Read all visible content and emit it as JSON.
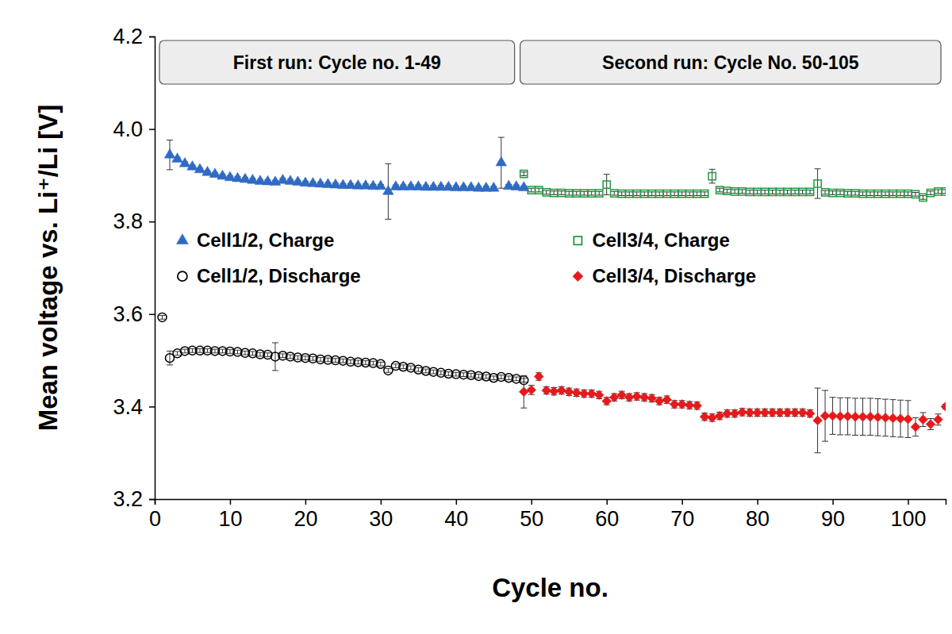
{
  "chart_data": {
    "type": "scatter",
    "x_label": "Cycle no.",
    "y_label": "Mean voltage vs. Li⁺/Li [V]",
    "annotations": [
      "First run: Cycle no. 1-49",
      "Second run: Cycle No. 50-105"
    ],
    "xlim": [
      0,
      105
    ],
    "xticks": [
      0,
      10,
      20,
      30,
      40,
      50,
      60,
      70,
      80,
      90,
      100
    ],
    "ylim": [
      3.2,
      4.2
    ],
    "yticks": [
      3.2,
      3.4,
      3.6,
      3.8,
      {
        "value": 4.0,
        "label": "4.0"
      },
      4.2
    ],
    "grid": false,
    "legend": "center",
    "series": [
      {
        "name": "Cell1/2, Charge",
        "color": "#2f6bc4",
        "marker": "triangle",
        "x": [
          2,
          3,
          4,
          5,
          6,
          7,
          8,
          9,
          10,
          11,
          12,
          13,
          14,
          15,
          16,
          17,
          18,
          19,
          20,
          21,
          22,
          23,
          24,
          25,
          26,
          27,
          28,
          29,
          30,
          31,
          32,
          33,
          34,
          35,
          36,
          37,
          38,
          39,
          40,
          41,
          42,
          43,
          44,
          45,
          46,
          47,
          48,
          49
        ],
        "values": [
          3.944,
          3.935,
          3.925,
          3.918,
          3.912,
          3.906,
          3.902,
          3.898,
          3.895,
          3.893,
          3.891,
          3.889,
          3.887,
          3.886,
          3.885,
          3.889,
          3.887,
          3.885,
          3.883,
          3.882,
          3.881,
          3.88,
          3.879,
          3.878,
          3.878,
          3.877,
          3.877,
          3.876,
          3.876,
          3.865,
          3.875,
          3.875,
          3.875,
          3.875,
          3.874,
          3.874,
          3.874,
          3.874,
          3.873,
          3.873,
          3.873,
          3.872,
          3.872,
          3.872,
          3.927,
          3.876,
          3.875,
          3.873
        ],
        "errors": [
          0.032,
          0.004,
          0.004,
          0.004,
          0.004,
          0.004,
          0.004,
          0.004,
          0.004,
          0.004,
          0.004,
          0.004,
          0.004,
          0.004,
          0.004,
          0.004,
          0.004,
          0.004,
          0.004,
          0.004,
          0.004,
          0.004,
          0.004,
          0.004,
          0.004,
          0.004,
          0.004,
          0.004,
          0.004,
          0.06,
          0.004,
          0.004,
          0.004,
          0.004,
          0.004,
          0.004,
          0.004,
          0.004,
          0.004,
          0.004,
          0.004,
          0.004,
          0.004,
          0.004,
          0.055,
          0.004,
          0.004,
          0.004
        ]
      },
      {
        "name": "Cell3/4, Charge",
        "color": "#1e9b3c",
        "marker": "square-open",
        "x": [
          49,
          50,
          51,
          52,
          53,
          54,
          55,
          56,
          57,
          58,
          59,
          60,
          61,
          62,
          63,
          64,
          65,
          66,
          67,
          68,
          69,
          70,
          71,
          72,
          73,
          74,
          75,
          76,
          77,
          78,
          79,
          80,
          81,
          82,
          83,
          84,
          85,
          86,
          87,
          88,
          89,
          90,
          91,
          92,
          93,
          94,
          95,
          96,
          97,
          98,
          99,
          100,
          101,
          102,
          103,
          104,
          105
        ],
        "values": [
          3.903,
          3.868,
          3.868,
          3.863,
          3.862,
          3.862,
          3.861,
          3.861,
          3.861,
          3.861,
          3.861,
          3.88,
          3.861,
          3.86,
          3.86,
          3.86,
          3.86,
          3.86,
          3.86,
          3.86,
          3.86,
          3.86,
          3.86,
          3.86,
          3.86,
          3.898,
          3.868,
          3.866,
          3.865,
          3.865,
          3.864,
          3.864,
          3.864,
          3.864,
          3.864,
          3.864,
          3.864,
          3.864,
          3.864,
          3.882,
          3.863,
          3.862,
          3.862,
          3.861,
          3.861,
          3.86,
          3.86,
          3.86,
          3.86,
          3.86,
          3.86,
          3.86,
          3.859,
          3.852,
          3.862,
          3.865,
          3.865
        ],
        "errors": [
          0.004,
          0.004,
          0.004,
          0.004,
          0.004,
          0.004,
          0.004,
          0.004,
          0.004,
          0.004,
          0.004,
          0.022,
          0.004,
          0.004,
          0.004,
          0.004,
          0.004,
          0.004,
          0.004,
          0.004,
          0.004,
          0.004,
          0.004,
          0.004,
          0.004,
          0.015,
          0.004,
          0.004,
          0.004,
          0.004,
          0.004,
          0.004,
          0.004,
          0.004,
          0.004,
          0.004,
          0.004,
          0.004,
          0.004,
          0.032,
          0.004,
          0.004,
          0.004,
          0.004,
          0.004,
          0.004,
          0.004,
          0.004,
          0.004,
          0.004,
          0.004,
          0.004,
          0.004,
          0.004,
          0.004,
          0.004,
          0.004
        ]
      },
      {
        "name": "Cell1/2, Discharge",
        "color": "#000000",
        "marker": "circle-open",
        "x": [
          1,
          2,
          3,
          4,
          5,
          6,
          7,
          8,
          9,
          10,
          11,
          12,
          13,
          14,
          15,
          16,
          17,
          18,
          19,
          20,
          21,
          22,
          23,
          24,
          25,
          26,
          27,
          28,
          29,
          30,
          31,
          32,
          33,
          34,
          35,
          36,
          37,
          38,
          39,
          40,
          41,
          42,
          43,
          44,
          45,
          46,
          47,
          48,
          49
        ],
        "values": [
          3.593,
          3.505,
          3.515,
          3.52,
          3.521,
          3.521,
          3.521,
          3.52,
          3.52,
          3.519,
          3.518,
          3.516,
          3.515,
          3.513,
          3.512,
          3.508,
          3.51,
          3.508,
          3.506,
          3.505,
          3.504,
          3.502,
          3.501,
          3.5,
          3.499,
          3.497,
          3.496,
          3.495,
          3.494,
          3.492,
          3.478,
          3.488,
          3.486,
          3.484,
          3.48,
          3.477,
          3.475,
          3.473,
          3.471,
          3.47,
          3.469,
          3.468,
          3.466,
          3.465,
          3.462,
          3.464,
          3.462,
          3.46,
          3.457
        ],
        "errors": [
          0.004,
          0.015,
          0.004,
          0.004,
          0.004,
          0.004,
          0.004,
          0.004,
          0.004,
          0.004,
          0.004,
          0.004,
          0.004,
          0.004,
          0.004,
          0.03,
          0.004,
          0.004,
          0.004,
          0.004,
          0.004,
          0.004,
          0.004,
          0.004,
          0.004,
          0.004,
          0.004,
          0.004,
          0.004,
          0.004,
          0.004,
          0.004,
          0.004,
          0.004,
          0.004,
          0.004,
          0.004,
          0.004,
          0.004,
          0.004,
          0.004,
          0.004,
          0.004,
          0.004,
          0.004,
          0.004,
          0.004,
          0.004,
          0.004
        ]
      },
      {
        "name": "Cell3/4, Discharge",
        "color": "#e41a1c",
        "marker": "diamond",
        "x": [
          49,
          50,
          51,
          52,
          53,
          54,
          55,
          56,
          57,
          58,
          59,
          60,
          61,
          62,
          63,
          64,
          65,
          66,
          67,
          68,
          69,
          70,
          71,
          72,
          73,
          74,
          75,
          76,
          77,
          78,
          79,
          80,
          81,
          82,
          83,
          84,
          85,
          86,
          87,
          88,
          89,
          90,
          91,
          92,
          93,
          94,
          95,
          96,
          97,
          98,
          99,
          100,
          101,
          102,
          103,
          104,
          105
        ],
        "values": [
          3.432,
          3.436,
          3.465,
          3.435,
          3.433,
          3.435,
          3.432,
          3.43,
          3.428,
          3.428,
          3.425,
          3.412,
          3.42,
          3.425,
          3.42,
          3.422,
          3.42,
          3.418,
          3.412,
          3.415,
          3.405,
          3.405,
          3.403,
          3.402,
          3.378,
          3.376,
          3.38,
          3.385,
          3.385,
          3.388,
          3.387,
          3.387,
          3.387,
          3.387,
          3.387,
          3.387,
          3.387,
          3.387,
          3.385,
          3.37,
          3.38,
          3.38,
          3.379,
          3.379,
          3.378,
          3.378,
          3.378,
          3.377,
          3.376,
          3.375,
          3.374,
          3.373,
          3.356,
          3.372,
          3.362,
          3.372,
          3.4
        ],
        "errors": [
          0.035,
          0.01,
          0.008,
          0.008,
          0.008,
          0.008,
          0.008,
          0.008,
          0.008,
          0.008,
          0.008,
          0.008,
          0.008,
          0.008,
          0.008,
          0.008,
          0.008,
          0.008,
          0.008,
          0.008,
          0.008,
          0.008,
          0.008,
          0.008,
          0.008,
          0.008,
          0.008,
          0.008,
          0.008,
          0.008,
          0.008,
          0.008,
          0.008,
          0.008,
          0.008,
          0.008,
          0.008,
          0.008,
          0.008,
          0.07,
          0.055,
          0.04,
          0.04,
          0.04,
          0.04,
          0.04,
          0.04,
          0.04,
          0.04,
          0.04,
          0.04,
          0.04,
          0.02,
          0.015,
          0.012,
          0.012,
          0.005
        ]
      }
    ]
  }
}
